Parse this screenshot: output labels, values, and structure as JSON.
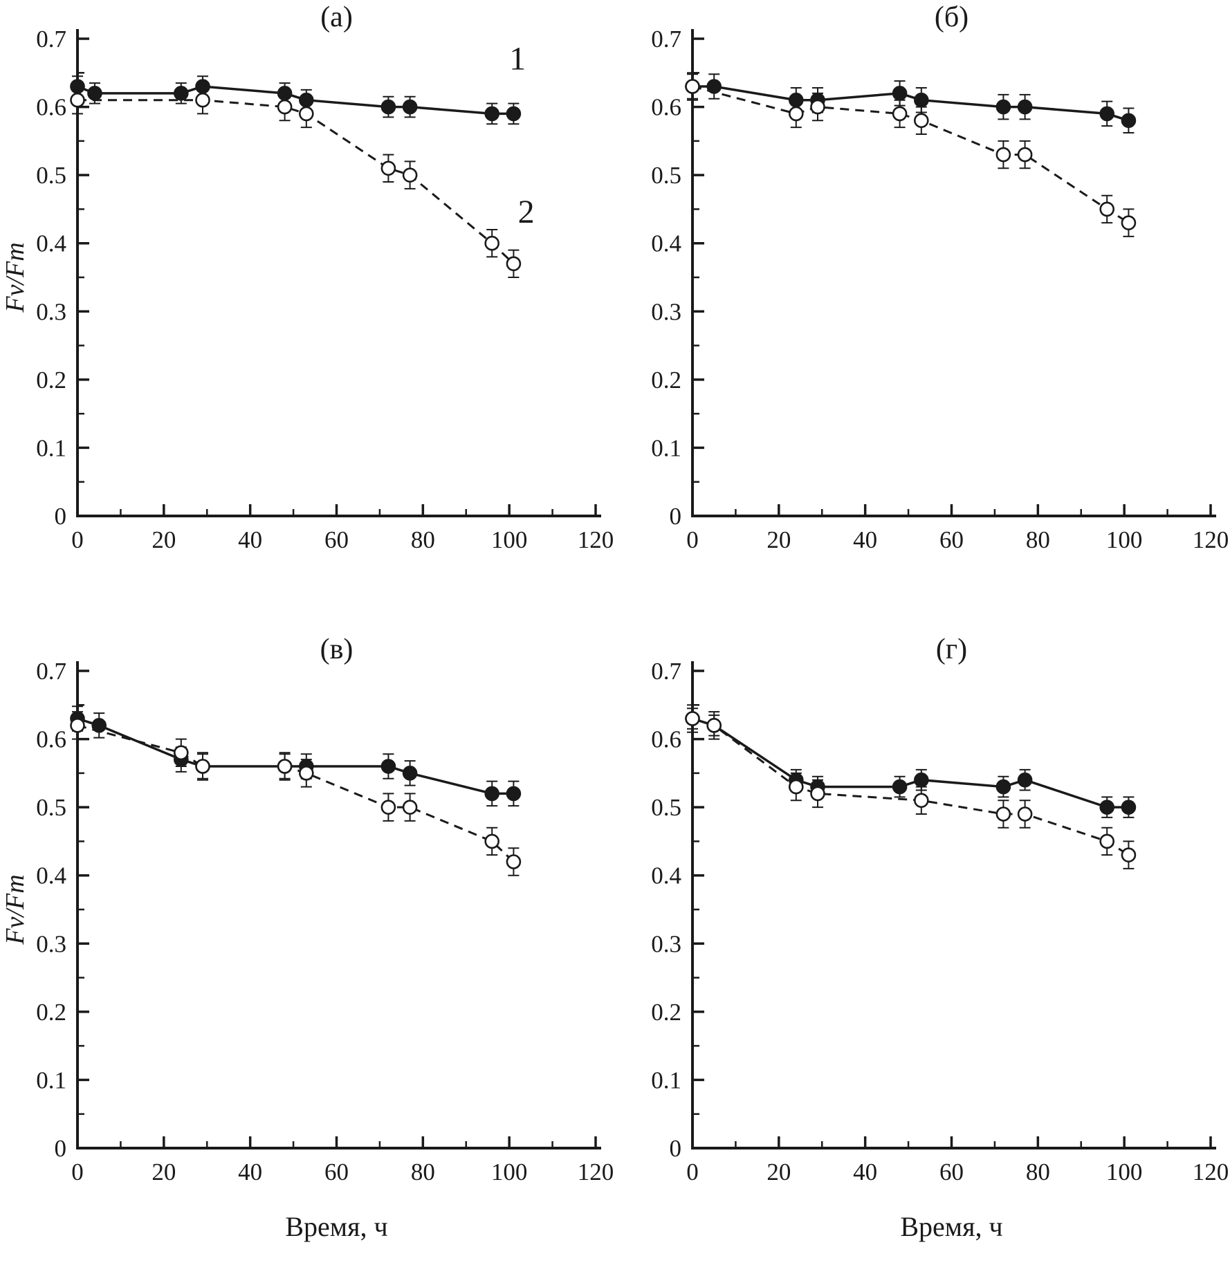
{
  "chart_data": {
    "type": "line",
    "xlabel": "Время, ч",
    "ylabel": "Fv/Fm",
    "colors": {
      "ink": "#1a1a1a",
      "background": "#ffffff"
    },
    "x_axis": {
      "min": 0,
      "max": 120,
      "major_step": 20,
      "minor_step": 10,
      "tick_labels": [
        "0",
        "20",
        "40",
        "60",
        "80",
        "100",
        "120"
      ]
    },
    "y_axis": {
      "min": 0,
      "max": 0.7,
      "major_step": 0.1,
      "minor_step": 0.05,
      "tick_labels": [
        "0",
        "0.1",
        "0.2",
        "0.3",
        "0.4",
        "0.5",
        "0.6",
        "0.7"
      ]
    },
    "legend": [
      {
        "label": "1",
        "marker": "filled-circle",
        "line": "solid"
      },
      {
        "label": "2",
        "marker": "open-circle",
        "line": "dashed"
      }
    ],
    "panels": [
      {
        "id": "a",
        "title": "(а)",
        "show_ylabel": true,
        "show_xlabel": false,
        "annotations": [
          {
            "text": "1",
            "x": 100,
            "y": 0.655
          },
          {
            "text": "2",
            "x": 102,
            "y": 0.43
          }
        ],
        "series": [
          {
            "name": "1",
            "marker": "filled",
            "line": "solid",
            "yerr": 0.015,
            "x": [
              0,
              4,
              24,
              29,
              48,
              53,
              72,
              77,
              96,
              101
            ],
            "y": [
              0.63,
              0.62,
              0.62,
              0.63,
              0.62,
              0.61,
              0.6,
              0.6,
              0.59,
              0.59
            ]
          },
          {
            "name": "2",
            "marker": "open",
            "line": "dashed",
            "yerr": 0.02,
            "x": [
              0,
              29,
              48,
              53,
              72,
              77,
              96,
              101
            ],
            "y": [
              0.61,
              0.61,
              0.6,
              0.59,
              0.51,
              0.5,
              0.4,
              0.37
            ]
          }
        ]
      },
      {
        "id": "b",
        "title": "(б)",
        "show_ylabel": false,
        "show_xlabel": false,
        "annotations": [],
        "series": [
          {
            "name": "1",
            "marker": "filled",
            "line": "solid",
            "yerr": 0.018,
            "x": [
              0,
              5,
              24,
              29,
              48,
              53,
              72,
              77,
              96,
              101
            ],
            "y": [
              0.63,
              0.63,
              0.61,
              0.61,
              0.62,
              0.61,
              0.6,
              0.6,
              0.59,
              0.58
            ]
          },
          {
            "name": "2",
            "marker": "open",
            "line": "dashed",
            "yerr": 0.02,
            "x": [
              0,
              24,
              29,
              48,
              53,
              72,
              77,
              96,
              101
            ],
            "y": [
              0.63,
              0.59,
              0.6,
              0.59,
              0.58,
              0.53,
              0.53,
              0.45,
              0.43
            ]
          }
        ]
      },
      {
        "id": "v",
        "title": "(в)",
        "show_ylabel": true,
        "show_xlabel": true,
        "annotations": [],
        "series": [
          {
            "name": "1",
            "marker": "filled",
            "line": "solid",
            "yerr": 0.018,
            "x": [
              0,
              5,
              24,
              29,
              48,
              53,
              72,
              77,
              96,
              101
            ],
            "y": [
              0.63,
              0.62,
              0.57,
              0.56,
              0.56,
              0.56,
              0.56,
              0.55,
              0.52,
              0.52
            ]
          },
          {
            "name": "2",
            "marker": "open",
            "line": "dashed",
            "yerr": 0.02,
            "x": [
              0,
              24,
              29,
              48,
              53,
              72,
              77,
              96,
              101
            ],
            "y": [
              0.62,
              0.58,
              0.56,
              0.56,
              0.55,
              0.5,
              0.5,
              0.45,
              0.42
            ]
          }
        ]
      },
      {
        "id": "g",
        "title": "(г)",
        "show_ylabel": false,
        "show_xlabel": true,
        "annotations": [],
        "series": [
          {
            "name": "1",
            "marker": "filled",
            "line": "solid",
            "yerr": 0.015,
            "x": [
              0,
              5,
              24,
              29,
              48,
              53,
              72,
              77,
              96,
              101
            ],
            "y": [
              0.63,
              0.62,
              0.54,
              0.53,
              0.53,
              0.54,
              0.53,
              0.54,
              0.5,
              0.5
            ]
          },
          {
            "name": "2",
            "marker": "open",
            "line": "dashed",
            "yerr": 0.02,
            "x": [
              0,
              5,
              24,
              29,
              53,
              72,
              77,
              96,
              101
            ],
            "y": [
              0.63,
              0.62,
              0.53,
              0.52,
              0.51,
              0.49,
              0.49,
              0.45,
              0.43
            ]
          }
        ]
      }
    ]
  }
}
